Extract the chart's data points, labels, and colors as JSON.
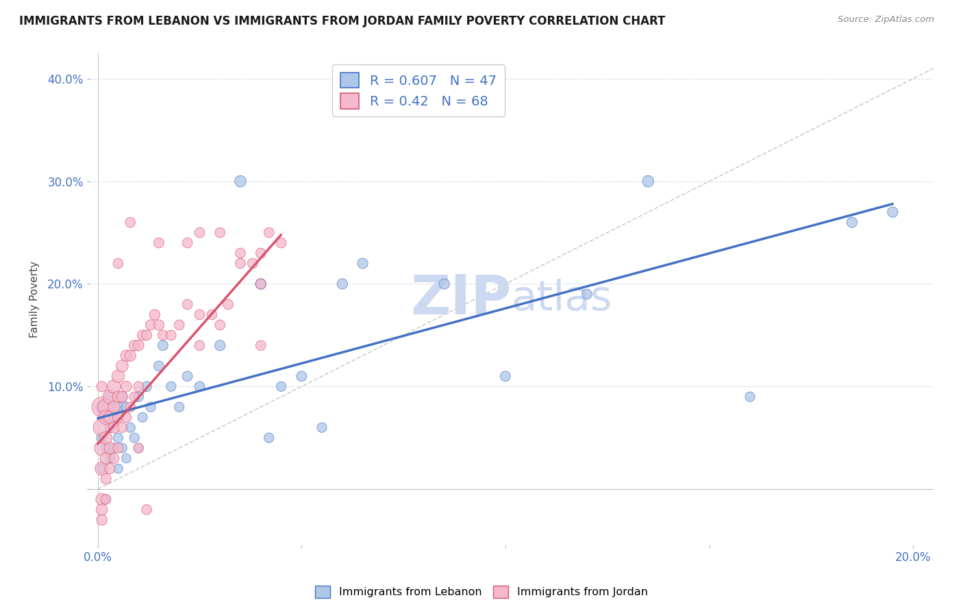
{
  "title": "IMMIGRANTS FROM LEBANON VS IMMIGRANTS FROM JORDAN FAMILY POVERTY CORRELATION CHART",
  "source": "Source: ZipAtlas.com",
  "ylabel": "Family Poverty",
  "xlim": [
    -0.002,
    0.205
  ],
  "ylim": [
    -0.055,
    0.425
  ],
  "xticks": [
    0.0,
    0.05,
    0.1,
    0.15,
    0.2
  ],
  "yticks": [
    0.0,
    0.1,
    0.2,
    0.3,
    0.4
  ],
  "xtick_labels_show": [
    "0.0%",
    "",
    "",
    "",
    "20.0%"
  ],
  "ytick_labels_show": [
    "",
    "10.0%",
    "20.0%",
    "30.0%",
    "40.0%"
  ],
  "lebanon_R": 0.607,
  "lebanon_N": 47,
  "jordan_R": 0.42,
  "jordan_N": 68,
  "lebanon_color": "#aec6e8",
  "jordan_color": "#f5b8cc",
  "lebanon_line_color": "#4472c4",
  "jordan_line_color": "#d9546e",
  "reference_line_color": "#c8c8c8",
  "grid_color": "#d8e0ec",
  "watermark_color": "#ccd9f0",
  "lebanon_x": [
    0.001,
    0.001,
    0.001,
    0.002,
    0.002,
    0.002,
    0.003,
    0.003,
    0.003,
    0.004,
    0.004,
    0.005,
    0.005,
    0.005,
    0.006,
    0.006,
    0.007,
    0.007,
    0.008,
    0.009,
    0.01,
    0.01,
    0.011,
    0.012,
    0.013,
    0.015,
    0.016,
    0.018,
    0.02,
    0.022,
    0.025,
    0.03,
    0.035,
    0.04,
    0.042,
    0.045,
    0.05,
    0.055,
    0.06,
    0.065,
    0.085,
    0.1,
    0.12,
    0.135,
    0.16,
    0.185,
    0.195
  ],
  "lebanon_y": [
    0.08,
    0.05,
    0.02,
    0.07,
    0.04,
    -0.01,
    0.09,
    0.06,
    0.03,
    0.07,
    0.04,
    0.08,
    0.05,
    0.02,
    0.09,
    0.04,
    0.08,
    0.03,
    0.06,
    0.05,
    0.09,
    0.04,
    0.07,
    0.1,
    0.08,
    0.12,
    0.14,
    0.1,
    0.08,
    0.11,
    0.1,
    0.14,
    0.3,
    0.2,
    0.05,
    0.1,
    0.11,
    0.06,
    0.2,
    0.22,
    0.2,
    0.11,
    0.19,
    0.3,
    0.09,
    0.26,
    0.27
  ],
  "lebanon_size": [
    20,
    15,
    12,
    18,
    14,
    12,
    16,
    14,
    12,
    15,
    13,
    15,
    13,
    12,
    14,
    13,
    14,
    12,
    13,
    13,
    14,
    12,
    13,
    14,
    13,
    14,
    14,
    13,
    13,
    14,
    14,
    15,
    18,
    16,
    13,
    13,
    14,
    13,
    15,
    15,
    15,
    14,
    14,
    18,
    13,
    15,
    15
  ],
  "jordan_x": [
    0.001,
    0.001,
    0.001,
    0.001,
    0.001,
    0.001,
    0.001,
    0.001,
    0.002,
    0.002,
    0.002,
    0.002,
    0.002,
    0.002,
    0.003,
    0.003,
    0.003,
    0.003,
    0.004,
    0.004,
    0.004,
    0.004,
    0.005,
    0.005,
    0.005,
    0.005,
    0.006,
    0.006,
    0.006,
    0.007,
    0.007,
    0.007,
    0.008,
    0.008,
    0.009,
    0.009,
    0.01,
    0.01,
    0.011,
    0.012,
    0.013,
    0.014,
    0.015,
    0.016,
    0.018,
    0.02,
    0.022,
    0.025,
    0.025,
    0.028,
    0.03,
    0.032,
    0.035,
    0.035,
    0.038,
    0.04,
    0.04,
    0.04,
    0.042,
    0.045,
    0.015,
    0.022,
    0.025,
    0.03,
    0.005,
    0.008,
    0.01,
    0.012
  ],
  "jordan_y": [
    0.08,
    0.06,
    0.04,
    0.02,
    -0.01,
    -0.02,
    -0.03,
    0.1,
    0.08,
    0.07,
    0.05,
    0.03,
    0.01,
    -0.01,
    0.09,
    0.07,
    0.04,
    0.02,
    0.1,
    0.08,
    0.06,
    0.03,
    0.11,
    0.09,
    0.07,
    0.04,
    0.12,
    0.09,
    0.06,
    0.13,
    0.1,
    0.07,
    0.13,
    0.08,
    0.14,
    0.09,
    0.14,
    0.1,
    0.15,
    0.15,
    0.16,
    0.17,
    0.16,
    0.15,
    0.15,
    0.16,
    0.18,
    0.17,
    0.14,
    0.17,
    0.16,
    0.18,
    0.23,
    0.22,
    0.22,
    0.23,
    0.2,
    0.14,
    0.25,
    0.24,
    0.24,
    0.24,
    0.25,
    0.25,
    0.22,
    0.26,
    0.04,
    -0.02
  ],
  "jordan_size": [
    55,
    40,
    30,
    25,
    20,
    18,
    16,
    15,
    35,
    28,
    22,
    18,
    15,
    14,
    28,
    22,
    18,
    15,
    25,
    20,
    17,
    14,
    22,
    18,
    16,
    14,
    20,
    17,
    14,
    18,
    16,
    14,
    17,
    14,
    16,
    14,
    16,
    14,
    15,
    15,
    15,
    15,
    15,
    14,
    14,
    14,
    14,
    14,
    14,
    14,
    14,
    14,
    14,
    14,
    14,
    14,
    14,
    14,
    14,
    14,
    14,
    14,
    14,
    14,
    14,
    14,
    14,
    14
  ],
  "leb_line_x0": 0.0,
  "leb_line_y0": 0.069,
  "leb_line_x1": 0.195,
  "leb_line_y1": 0.278,
  "jor_line_x0": 0.0,
  "jor_line_y0": 0.044,
  "jor_line_x1": 0.045,
  "jor_line_y1": 0.248
}
